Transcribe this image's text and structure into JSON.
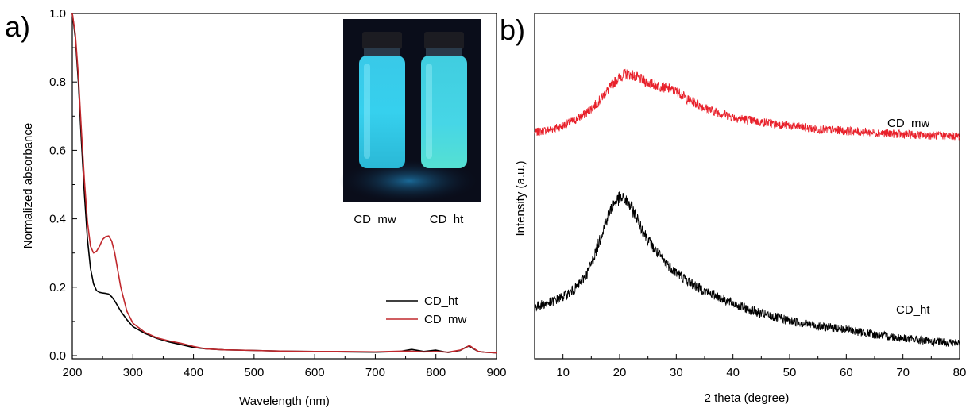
{
  "chart_data": [
    {
      "panel": "a)",
      "type": "line",
      "xlabel": "Wavelength (nm)",
      "ylabel": "Normalized absorbance",
      "xlim": [
        200,
        900
      ],
      "ylim": [
        0.0,
        1.0
      ],
      "xticks": [
        200,
        300,
        400,
        500,
        600,
        700,
        800,
        900
      ],
      "yticks": [
        0.0,
        0.2,
        0.4,
        0.6,
        0.8,
        1.0
      ],
      "xtick_labels": [
        "200",
        "300",
        "400",
        "500",
        "600",
        "700",
        "800",
        "900"
      ],
      "ytick_labels": [
        "0.0",
        "0.2",
        "0.4",
        "0.6",
        "0.8",
        "1.0"
      ],
      "legend_position": "bottom-right",
      "series": [
        {
          "name": "CD_ht",
          "color": "#000000",
          "x": [
            200,
            205,
            210,
            215,
            220,
            225,
            230,
            235,
            240,
            245,
            250,
            255,
            260,
            265,
            270,
            275,
            280,
            290,
            300,
            320,
            340,
            360,
            380,
            400,
            420,
            450,
            500,
            550,
            600,
            650,
            700,
            740,
            760,
            780,
            800,
            820,
            840,
            850,
            855,
            860,
            870,
            880,
            900
          ],
          "y": [
            1.0,
            0.93,
            0.8,
            0.63,
            0.47,
            0.34,
            0.255,
            0.21,
            0.19,
            0.185,
            0.183,
            0.182,
            0.18,
            0.172,
            0.16,
            0.145,
            0.13,
            0.105,
            0.085,
            0.065,
            0.05,
            0.04,
            0.032,
            0.024,
            0.02,
            0.017,
            0.015,
            0.013,
            0.012,
            0.011,
            0.01,
            0.012,
            0.018,
            0.012,
            0.016,
            0.009,
            0.015,
            0.025,
            0.028,
            0.022,
            0.012,
            0.01,
            0.008
          ]
        },
        {
          "name": "CD_mw",
          "color": "#c0282d",
          "x": [
            200,
            205,
            210,
            215,
            220,
            225,
            230,
            235,
            240,
            245,
            250,
            255,
            260,
            265,
            270,
            275,
            280,
            290,
            300,
            320,
            340,
            360,
            380,
            400,
            420,
            450,
            500,
            550,
            600,
            650,
            700,
            740,
            760,
            780,
            800,
            820,
            840,
            850,
            855,
            860,
            870,
            880,
            900
          ],
          "y": [
            1.0,
            0.94,
            0.82,
            0.66,
            0.51,
            0.39,
            0.32,
            0.3,
            0.305,
            0.32,
            0.34,
            0.348,
            0.35,
            0.335,
            0.3,
            0.25,
            0.2,
            0.13,
            0.095,
            0.068,
            0.052,
            0.043,
            0.036,
            0.027,
            0.02,
            0.017,
            0.015,
            0.013,
            0.012,
            0.012,
            0.011,
            0.013,
            0.013,
            0.011,
            0.012,
            0.01,
            0.016,
            0.024,
            0.03,
            0.024,
            0.012,
            0.01,
            0.008
          ]
        }
      ],
      "inset": {
        "description_labels": [
          "CD_mw",
          "CD_ht"
        ]
      }
    },
    {
      "panel": "b)",
      "type": "line",
      "xlabel": "2 theta (degree)",
      "ylabel": "Intensity (a.u.)",
      "xlim": [
        5,
        80
      ],
      "xticks": [
        10,
        20,
        30,
        40,
        50,
        60,
        70,
        80
      ],
      "xtick_labels": [
        "10",
        "20",
        "30",
        "40",
        "50",
        "60",
        "70",
        "80"
      ],
      "yticks_shown": false,
      "series": [
        {
          "name": "CD_mw",
          "color": "#e8202a",
          "x": [
            5,
            8,
            10,
            12,
            14,
            16,
            17,
            18,
            19,
            20,
            21,
            22,
            23,
            24,
            25,
            26,
            27,
            28,
            29,
            30,
            31,
            32,
            34,
            36,
            38,
            40,
            45,
            50,
            55,
            60,
            65,
            70,
            75,
            80
          ],
          "y": [
            0.655,
            0.665,
            0.675,
            0.69,
            0.71,
            0.74,
            0.76,
            0.78,
            0.8,
            0.815,
            0.825,
            0.822,
            0.815,
            0.808,
            0.8,
            0.795,
            0.79,
            0.785,
            0.78,
            0.775,
            0.765,
            0.75,
            0.735,
            0.72,
            0.71,
            0.7,
            0.685,
            0.675,
            0.665,
            0.66,
            0.655,
            0.65,
            0.647,
            0.645
          ]
        },
        {
          "name": "CD_ht",
          "color": "#000000",
          "x": [
            5,
            8,
            10,
            12,
            14,
            15,
            16,
            17,
            18,
            19,
            20,
            21,
            22,
            23,
            24,
            25,
            26,
            27,
            28,
            30,
            32,
            34,
            36,
            38,
            40,
            45,
            50,
            55,
            60,
            65,
            70,
            75,
            80
          ],
          "y": [
            0.15,
            0.165,
            0.18,
            0.2,
            0.24,
            0.275,
            0.32,
            0.37,
            0.415,
            0.45,
            0.465,
            0.46,
            0.44,
            0.41,
            0.375,
            0.345,
            0.32,
            0.3,
            0.28,
            0.25,
            0.225,
            0.205,
            0.19,
            0.175,
            0.16,
            0.13,
            0.11,
            0.095,
            0.085,
            0.07,
            0.06,
            0.05,
            0.045
          ]
        }
      ],
      "labels": [
        "CD_mw",
        "CD_ht"
      ]
    }
  ]
}
